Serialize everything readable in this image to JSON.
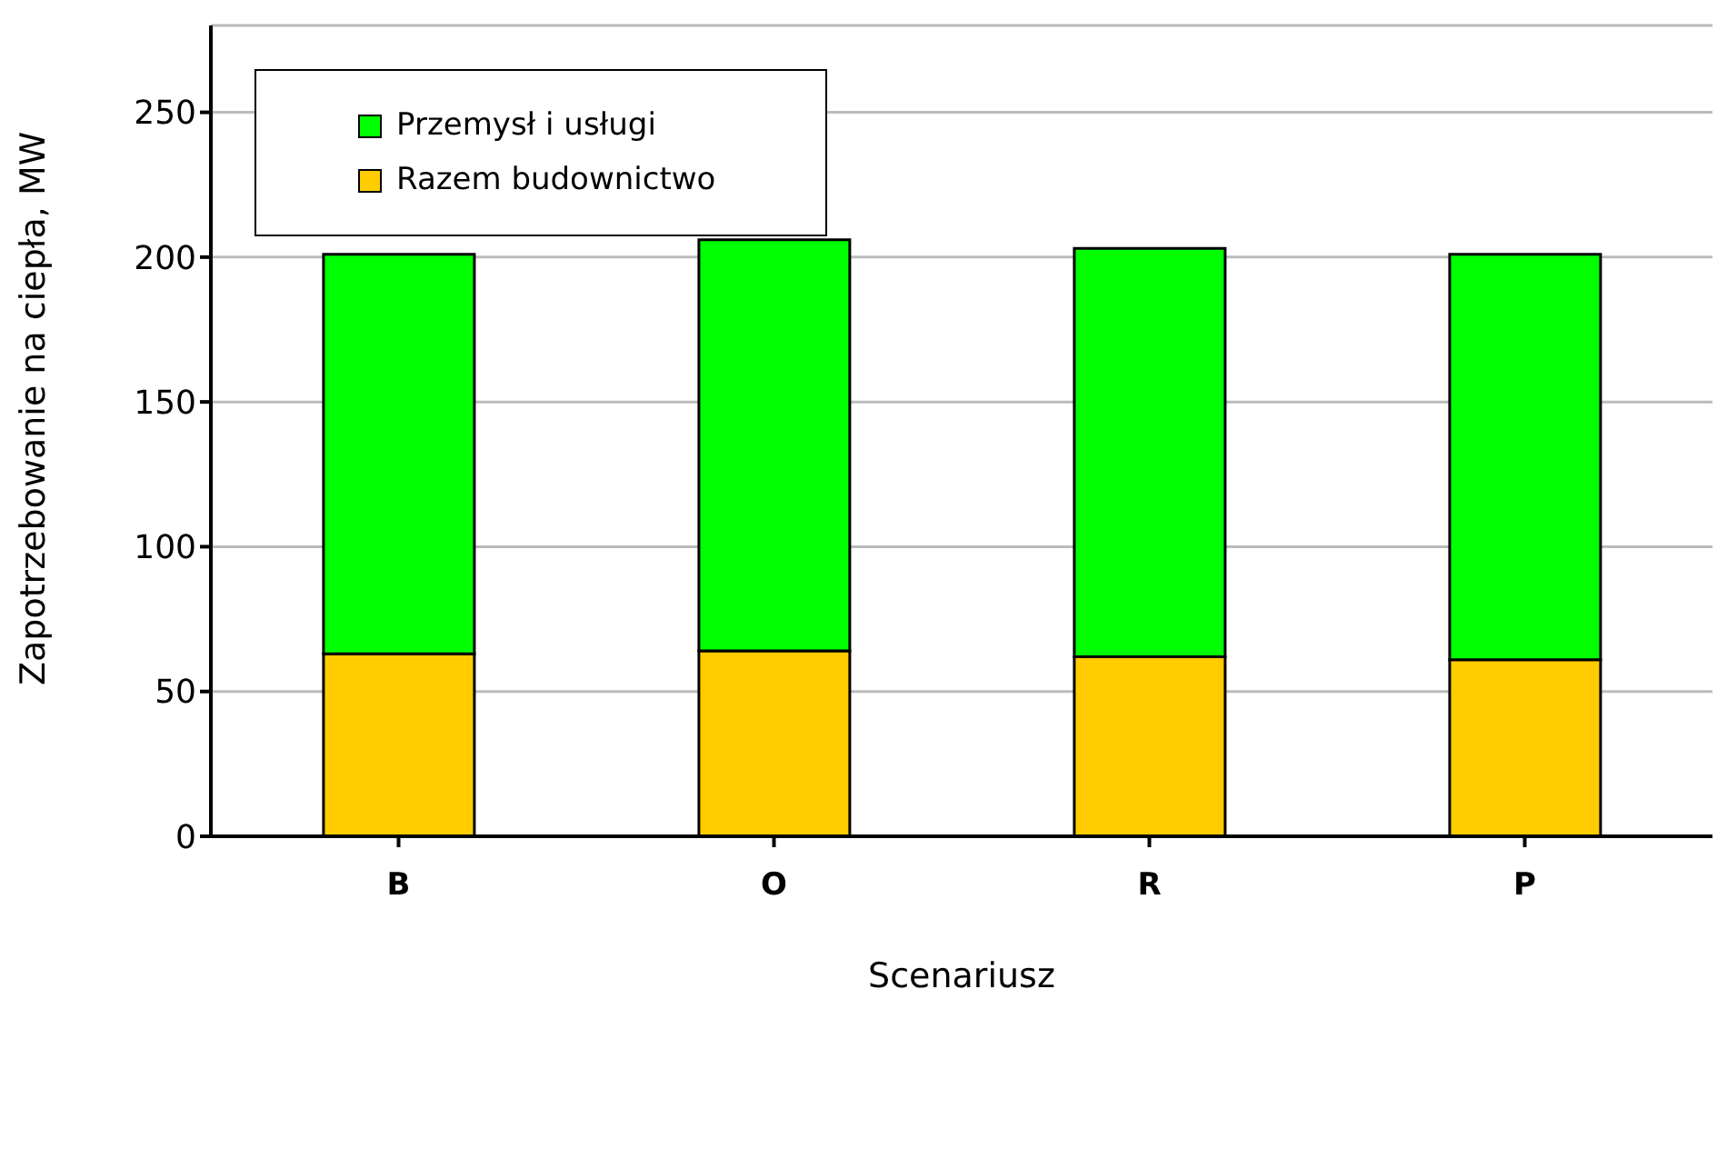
{
  "chart_data": {
    "type": "bar",
    "stacked": true,
    "xlabel": "Scenariusz",
    "ylabel": "Zapotrzebowanie na ciepła, MW",
    "categories": [
      "B",
      "O",
      "R",
      "P"
    ],
    "series": [
      {
        "name": "Razem budownictwo",
        "color": "#ffcc00",
        "values": [
          63,
          64,
          62,
          61
        ]
      },
      {
        "name": "Przemysł i usługi",
        "color": "#00ff00",
        "values": [
          138,
          142,
          141,
          140
        ]
      }
    ],
    "ylim": [
      0,
      280
    ],
    "yticks": [
      0,
      50,
      100,
      150,
      200,
      250
    ],
    "grid": "y",
    "legend": "top left"
  }
}
